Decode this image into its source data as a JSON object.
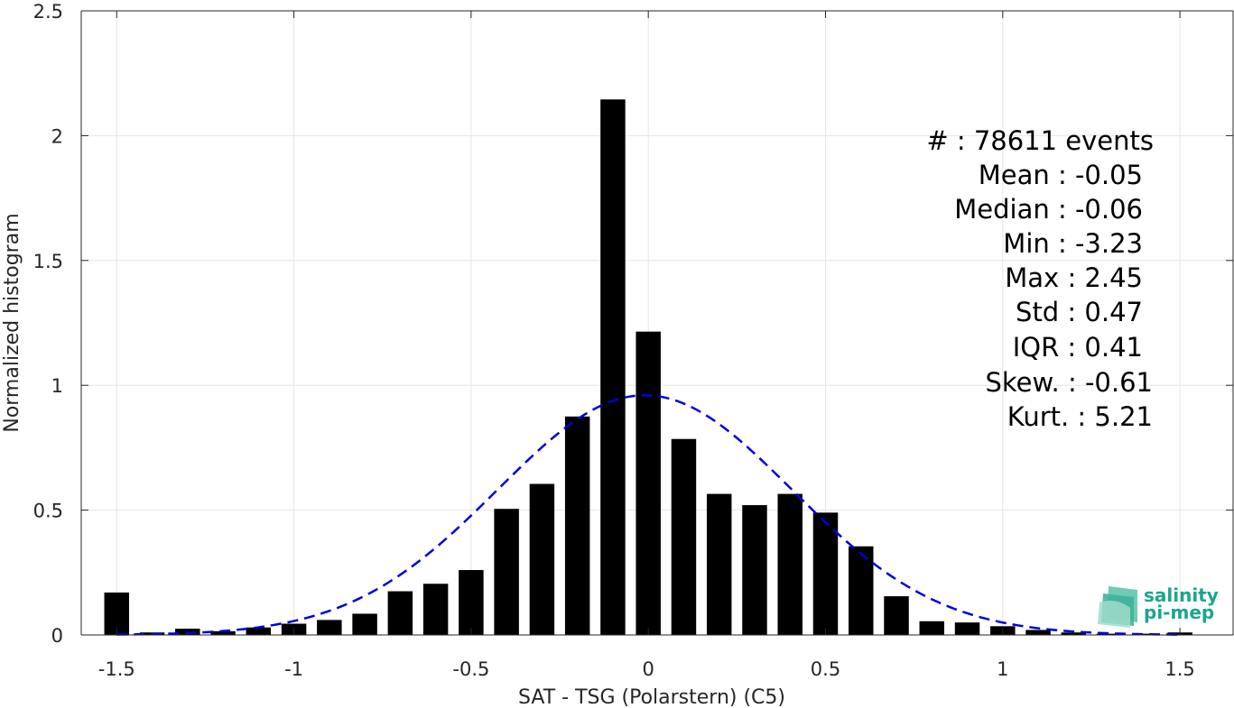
{
  "chart_data": {
    "type": "bar",
    "xlabel": "SAT - TSG (Polarstern) (C5)",
    "ylabel": "Normalized histogram",
    "xlim": [
      -1.6,
      1.65
    ],
    "ylim": [
      0,
      2.5
    ],
    "xticks": [
      -1.5,
      -1,
      -0.5,
      0,
      0.5,
      1,
      1.5
    ],
    "xtick_labels": [
      "-1.5",
      "-1",
      "-0.5",
      "0",
      "0.5",
      "1",
      "1.5"
    ],
    "yticks": [
      0,
      0.5,
      1,
      1.5,
      2,
      2.5
    ],
    "ytick_labels": [
      "0",
      "0.5",
      "1",
      "1.5",
      "2",
      "2.5"
    ],
    "grid": true,
    "bar_width": 0.07,
    "bar_color": "#000000",
    "bins": [
      {
        "x": -1.5,
        "y": 0.17
      },
      {
        "x": -1.4,
        "y": 0.01
      },
      {
        "x": -1.3,
        "y": 0.025
      },
      {
        "x": -1.2,
        "y": 0.015
      },
      {
        "x": -1.1,
        "y": 0.03
      },
      {
        "x": -1.0,
        "y": 0.045
      },
      {
        "x": -0.9,
        "y": 0.06
      },
      {
        "x": -0.8,
        "y": 0.085
      },
      {
        "x": -0.7,
        "y": 0.175
      },
      {
        "x": -0.6,
        "y": 0.205
      },
      {
        "x": -0.5,
        "y": 0.26
      },
      {
        "x": -0.4,
        "y": 0.505
      },
      {
        "x": -0.3,
        "y": 0.605
      },
      {
        "x": -0.2,
        "y": 0.875
      },
      {
        "x": -0.1,
        "y": 2.145
      },
      {
        "x": 0.0,
        "y": 1.215
      },
      {
        "x": 0.1,
        "y": 0.785
      },
      {
        "x": 0.2,
        "y": 0.565
      },
      {
        "x": 0.3,
        "y": 0.52
      },
      {
        "x": 0.4,
        "y": 0.565
      },
      {
        "x": 0.5,
        "y": 0.49
      },
      {
        "x": 0.6,
        "y": 0.355
      },
      {
        "x": 0.7,
        "y": 0.155
      },
      {
        "x": 0.8,
        "y": 0.055
      },
      {
        "x": 0.9,
        "y": 0.05
      },
      {
        "x": 1.0,
        "y": 0.035
      },
      {
        "x": 1.1,
        "y": 0.02
      },
      {
        "x": 1.2,
        "y": 0.01
      },
      {
        "x": 1.3,
        "y": 0.005
      },
      {
        "x": 1.4,
        "y": 0.005
      },
      {
        "x": 1.5,
        "y": 0.01
      }
    ],
    "fit": {
      "type": "gaussian",
      "mean": -0.01,
      "std": 0.415,
      "peak": 0.96,
      "color": "#0000dd",
      "style": "dashed"
    }
  },
  "stats": {
    "count": "#  : 78611 events",
    "mean": "Mean : -0.05",
    "median": "Median : -0.06",
    "min": "Min : -3.23",
    "max": "Max : 2.45",
    "std": "Std : 0.47",
    "iqr": "IQR : 0.41",
    "skew": "Skew. : -0.61",
    "kurt": "Kurt. : 5.21"
  },
  "logo": {
    "line1": "salinity",
    "line2": "pi-mep",
    "color": "#1aa68c"
  }
}
